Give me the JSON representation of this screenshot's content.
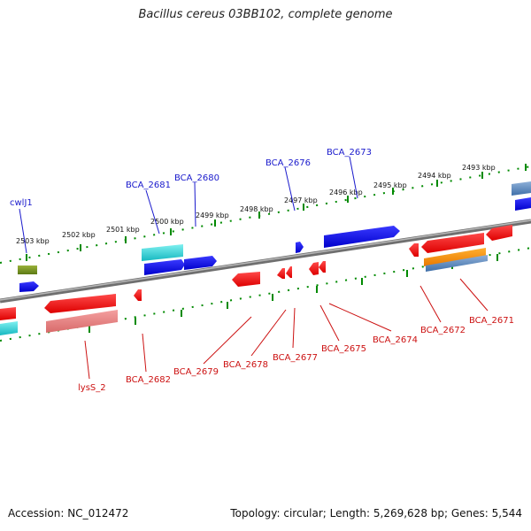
{
  "title": "Bacillus cereus 03BB102, complete genome",
  "footer": {
    "accession": "Accession: NC_012472",
    "summary": "Topology: circular; Length: 5,269,628 bp; Genes: 5,544"
  },
  "colors": {
    "forward_gene": "#0000ee",
    "reverse_gene": "#ee0000",
    "backbone": "#777777",
    "tick": "#008000",
    "top_label": "#1a1acc",
    "bottom_label": "#cc1111"
  },
  "tick_labels": [
    "2503 kbp",
    "2502 kbp",
    "2501 kbp",
    "2500 kbp",
    "2499 kbp",
    "2498 kbp",
    "2497 kbp",
    "2496 kbp",
    "2495 kbp",
    "2494 kbp",
    "2493 kbp"
  ],
  "top_gene_labels": [
    "cwlJ1",
    "BCA_2681",
    "BCA_2680",
    "BCA_2676",
    "BCA_2673"
  ],
  "bottom_gene_labels": [
    "lysS_2",
    "BCA_2682",
    "BCA_2679",
    "BCA_2678",
    "BCA_2677",
    "BCA_2675",
    "BCA_2674",
    "BCA_2672",
    "BCA_2671"
  ]
}
